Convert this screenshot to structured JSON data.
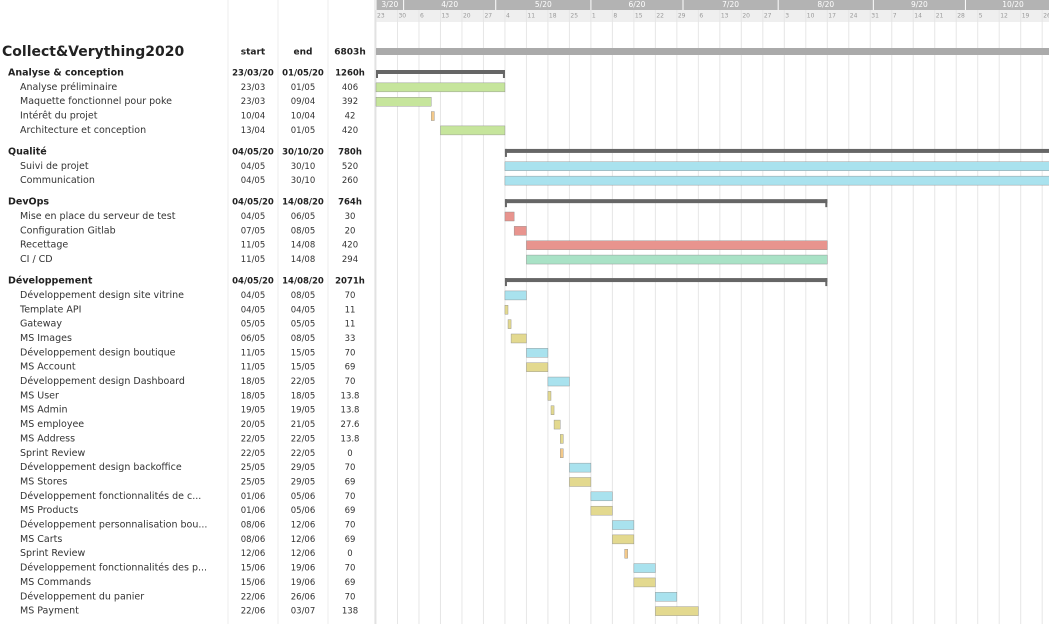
{
  "project": {
    "title": "Collect&Verything2020",
    "start_header": "start",
    "end_header": "end",
    "hours": "6803h"
  },
  "timeline": {
    "months": [
      "3/20",
      "4/20",
      "5/20",
      "6/20",
      "7/20",
      "8/20",
      "9/20",
      "10/20"
    ],
    "weeks": [
      "23",
      "30",
      "6",
      "13",
      "20",
      "27",
      "4",
      "11",
      "18",
      "25",
      "1",
      "8",
      "15",
      "22",
      "29",
      "6",
      "13",
      "20",
      "27",
      "3",
      "10",
      "17",
      "24",
      "31",
      "7",
      "14",
      "21",
      "28",
      "5",
      "12",
      "19",
      "26"
    ]
  },
  "groups": [
    {
      "name": "Analyse & conception",
      "start": "23/03/20",
      "end": "01/05/20",
      "hours": "1260h",
      "tasks": [
        {
          "name": "Analyse préliminaire",
          "start": "23/03",
          "end": "01/05",
          "hours": "406",
          "color": "#c6e59c"
        },
        {
          "name": "Maquette fonctionnel pour poke",
          "start": "23/03",
          "end": "09/04",
          "hours": "392",
          "color": "#c6e59c"
        },
        {
          "name": "Intérêt du projet",
          "start": "10/04",
          "end": "10/04",
          "hours": "42",
          "color": "#f3c98a"
        },
        {
          "name": "Architecture et conception",
          "start": "13/04",
          "end": "01/05",
          "hours": "420",
          "color": "#c6e59c"
        }
      ]
    },
    {
      "name": "Qualité",
      "start": "04/05/20",
      "end": "30/10/20",
      "hours": "780h",
      "tasks": [
        {
          "name": "Suivi de projet",
          "start": "04/05",
          "end": "30/10",
          "hours": "520",
          "color": "#a9e2ee"
        },
        {
          "name": "Communication",
          "start": "04/05",
          "end": "30/10",
          "hours": "260",
          "color": "#a9e2ee"
        }
      ]
    },
    {
      "name": "DevOps",
      "start": "04/05/20",
      "end": "14/08/20",
      "hours": "764h",
      "tasks": [
        {
          "name": "Mise en place du serveur de test",
          "start": "04/05",
          "end": "06/05",
          "hours": "30",
          "color": "#e8948e"
        },
        {
          "name": "Configuration Gitlab",
          "start": "07/05",
          "end": "08/05",
          "hours": "20",
          "color": "#e8948e"
        },
        {
          "name": "Recettage",
          "start": "11/05",
          "end": "14/08",
          "hours": "420",
          "color": "#e8948e"
        },
        {
          "name": "CI / CD",
          "start": "11/05",
          "end": "14/08",
          "hours": "294",
          "color": "#a9e2c6"
        }
      ]
    },
    {
      "name": "Développement",
      "start": "04/05/20",
      "end": "14/08/20",
      "hours": "2071h",
      "tasks": [
        {
          "name": "Développement design site vitrine",
          "start": "04/05",
          "end": "08/05",
          "hours": "70",
          "color": "#a9e2ee"
        },
        {
          "name": "Template API",
          "start": "04/05",
          "end": "04/05",
          "hours": "11",
          "color": "#e3d98f"
        },
        {
          "name": "Gateway",
          "start": "05/05",
          "end": "05/05",
          "hours": "11",
          "color": "#e3d98f"
        },
        {
          "name": "MS Images",
          "start": "06/05",
          "end": "08/05",
          "hours": "33",
          "color": "#e3d98f"
        },
        {
          "name": "Développement design boutique",
          "start": "11/05",
          "end": "15/05",
          "hours": "70",
          "color": "#a9e2ee"
        },
        {
          "name": "MS Account",
          "start": "11/05",
          "end": "15/05",
          "hours": "69",
          "color": "#e3d98f"
        },
        {
          "name": "Développement design Dashboard",
          "start": "18/05",
          "end": "22/05",
          "hours": "70",
          "color": "#a9e2ee"
        },
        {
          "name": "MS User",
          "start": "18/05",
          "end": "18/05",
          "hours": "13.8",
          "color": "#e3d98f"
        },
        {
          "name": "MS Admin",
          "start": "19/05",
          "end": "19/05",
          "hours": "13.8",
          "color": "#e3d98f"
        },
        {
          "name": "MS employee",
          "start": "20/05",
          "end": "21/05",
          "hours": "27.6",
          "color": "#e3d98f"
        },
        {
          "name": "MS Address",
          "start": "22/05",
          "end": "22/05",
          "hours": "13.8",
          "color": "#e3d98f"
        },
        {
          "name": "Sprint Review",
          "start": "22/05",
          "end": "22/05",
          "hours": "0",
          "color": "#f3c98a"
        },
        {
          "name": "Développement design backoffice",
          "start": "25/05",
          "end": "29/05",
          "hours": "70",
          "color": "#a9e2ee"
        },
        {
          "name": "MS Stores",
          "start": "25/05",
          "end": "29/05",
          "hours": "69",
          "color": "#e3d98f"
        },
        {
          "name": "Développement fonctionnalités de c...",
          "start": "01/06",
          "end": "05/06",
          "hours": "70",
          "color": "#a9e2ee"
        },
        {
          "name": "MS Products",
          "start": "01/06",
          "end": "05/06",
          "hours": "69",
          "color": "#e3d98f"
        },
        {
          "name": "Développement personnalisation bou...",
          "start": "08/06",
          "end": "12/06",
          "hours": "70",
          "color": "#a9e2ee"
        },
        {
          "name": "MS Carts",
          "start": "08/06",
          "end": "12/06",
          "hours": "69",
          "color": "#e3d98f"
        },
        {
          "name": "Sprint Review",
          "start": "12/06",
          "end": "12/06",
          "hours": "0",
          "color": "#f3c98a"
        },
        {
          "name": "Développement fonctionnalités des p...",
          "start": "15/06",
          "end": "19/06",
          "hours": "70",
          "color": "#a9e2ee"
        },
        {
          "name": "MS Commands",
          "start": "15/06",
          "end": "19/06",
          "hours": "69",
          "color": "#e3d98f"
        },
        {
          "name": "Développement du panier",
          "start": "22/06",
          "end": "26/06",
          "hours": "70",
          "color": "#a9e2ee"
        },
        {
          "name": "MS Payment",
          "start": "22/06",
          "end": "03/07",
          "hours": "138",
          "color": "#e3d98f"
        }
      ]
    }
  ]
}
